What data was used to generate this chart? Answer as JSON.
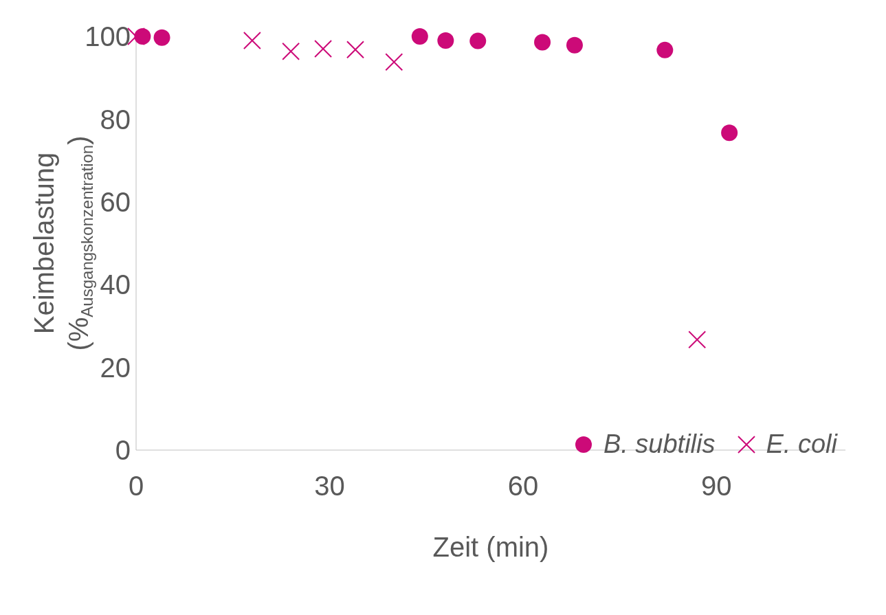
{
  "chart_data": {
    "type": "scatter",
    "xlabel": "Zeit (min)",
    "ylabel": "Keimbelastung\n(%$_{Ausgangskonzentration}$)",
    "xlim": [
      0,
      110
    ],
    "xticks": [
      0,
      30,
      60,
      90
    ],
    "ylim": [
      0,
      100
    ],
    "yticks": [
      0,
      20,
      40,
      60,
      80,
      100
    ],
    "grid": false,
    "legend": "bottom right",
    "series": [
      {
        "name": "B. subtilis",
        "color": "#cc0a78",
        "marker": "circle",
        "x": [
          1,
          4,
          44,
          48,
          53,
          63,
          68,
          82,
          92
        ],
        "values": [
          100,
          99.7,
          100,
          99,
          98.9,
          98.6,
          97.9,
          96.7,
          76.7
        ]
      },
      {
        "name": "E. coli",
        "color": "#cc0a78",
        "marker": "cross",
        "x": [
          0,
          18,
          24,
          29,
          34,
          40,
          87
        ],
        "values": [
          100,
          99,
          96.4,
          97,
          96.8,
          93.8,
          26.7
        ]
      }
    ]
  }
}
